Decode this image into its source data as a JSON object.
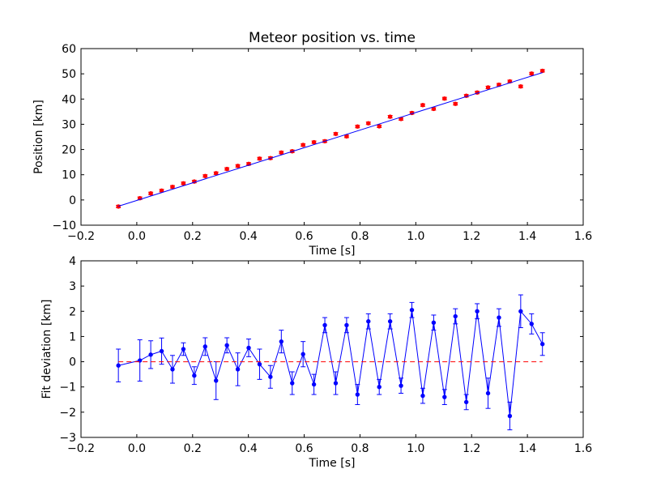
{
  "chart_data": [
    {
      "type": "scatter",
      "title": "Meteor position vs. time",
      "xlabel": "Time [s]",
      "ylabel": "Position [km]",
      "xlim": [
        -0.2,
        1.6
      ],
      "ylim": [
        -10,
        60
      ],
      "xticks": [
        "−0.2",
        "0.0",
        "0.2",
        "0.4",
        "0.6",
        "0.8",
        "1.0",
        "1.2",
        "1.4",
        "1.6"
      ],
      "yticks": [
        "−10",
        "0",
        "10",
        "20",
        "30",
        "40",
        "50",
        "60"
      ],
      "grid": false,
      "series": [
        {
          "kind": "errorbar-points",
          "color": "#ff0000",
          "x": [
            -0.066,
            0.011,
            0.05,
            0.089,
            0.128,
            0.167,
            0.206,
            0.245,
            0.284,
            0.323,
            0.362,
            0.401,
            0.44,
            0.479,
            0.518,
            0.557,
            0.596,
            0.635,
            0.674,
            0.713,
            0.752,
            0.791,
            0.83,
            0.869,
            0.908,
            0.947,
            0.986,
            1.025,
            1.064,
            1.103,
            1.142,
            1.181,
            1.22,
            1.259,
            1.298,
            1.337,
            1.376,
            1.415,
            1.454
          ],
          "y": [
            -2.6,
            0.7,
            2.6,
            3.7,
            5.2,
            6.6,
            7.3,
            9.5,
            10.6,
            12.3,
            13.5,
            14.3,
            16.4,
            16.6,
            18.8,
            19.3,
            21.8,
            22.9,
            23.3,
            26.2,
            25.2,
            29.1,
            30.4,
            29.2,
            33.0,
            32.1,
            34.5,
            37.6,
            36.1,
            40.2,
            38.1,
            41.3,
            42.6,
            44.6,
            45.7,
            47.0,
            45.0,
            50.1,
            51.2
          ],
          "yerr": [
            0.5,
            0.5,
            0.5,
            0.5,
            0.5,
            0.5,
            0.5,
            0.5,
            0.5,
            0.5,
            0.5,
            0.5,
            0.5,
            0.5,
            0.5,
            0.5,
            0.5,
            0.5,
            0.5,
            0.5,
            0.5,
            0.5,
            0.5,
            0.5,
            0.5,
            0.5,
            0.5,
            0.5,
            0.5,
            0.5,
            0.5,
            0.5,
            0.5,
            0.5,
            0.5,
            0.5,
            0.5,
            0.5,
            0.5
          ]
        },
        {
          "kind": "line",
          "color": "#0000ff",
          "x": [
            -0.066,
            1.454
          ],
          "y": [
            -2.5,
            50.5
          ]
        }
      ]
    },
    {
      "type": "line",
      "title": "",
      "xlabel": "Time [s]",
      "ylabel": "Fit deviation [km]",
      "xlim": [
        -0.2,
        1.6
      ],
      "ylim": [
        -3,
        4
      ],
      "xticks": [
        "−0.2",
        "0.0",
        "0.2",
        "0.4",
        "0.6",
        "0.8",
        "1.0",
        "1.2",
        "1.4",
        "1.6"
      ],
      "yticks": [
        "−3",
        "−2",
        "−1",
        "0",
        "1",
        "2",
        "3",
        "4"
      ],
      "grid": false,
      "series": [
        {
          "kind": "errorbar-line",
          "color": "#0000ff",
          "x": [
            -0.066,
            0.011,
            0.05,
            0.089,
            0.128,
            0.167,
            0.206,
            0.245,
            0.284,
            0.323,
            0.362,
            0.401,
            0.44,
            0.479,
            0.518,
            0.557,
            0.596,
            0.635,
            0.674,
            0.713,
            0.752,
            0.791,
            0.83,
            0.869,
            0.908,
            0.947,
            0.986,
            1.025,
            1.064,
            1.103,
            1.142,
            1.181,
            1.22,
            1.259,
            1.298,
            1.337,
            1.376,
            1.415,
            1.454
          ],
          "y": [
            -0.15,
            0.05,
            0.28,
            0.42,
            -0.3,
            0.5,
            -0.55,
            0.6,
            -0.75,
            0.65,
            -0.3,
            0.55,
            -0.1,
            -0.6,
            0.8,
            -0.85,
            0.3,
            -0.9,
            1.45,
            -0.85,
            1.45,
            -1.3,
            1.6,
            -1.0,
            1.6,
            -0.95,
            2.05,
            -1.35,
            1.55,
            -1.4,
            1.8,
            -1.6,
            2.0,
            -1.25,
            1.75,
            -2.15,
            2.0,
            1.5,
            0.7
          ],
          "yerr": [
            0.65,
            0.82,
            0.55,
            0.52,
            0.55,
            0.25,
            0.35,
            0.35,
            0.75,
            0.3,
            0.65,
            0.35,
            0.6,
            0.45,
            0.45,
            0.45,
            0.5,
            0.4,
            0.3,
            0.45,
            0.3,
            0.4,
            0.3,
            0.3,
            0.3,
            0.3,
            0.3,
            0.3,
            0.3,
            0.3,
            0.3,
            0.3,
            0.3,
            0.6,
            0.35,
            0.55,
            0.65,
            0.4,
            0.45
          ]
        },
        {
          "kind": "dashed-line",
          "color": "#ff0000",
          "x": [
            -0.066,
            1.454
          ],
          "y": [
            0,
            0
          ]
        }
      ]
    }
  ]
}
